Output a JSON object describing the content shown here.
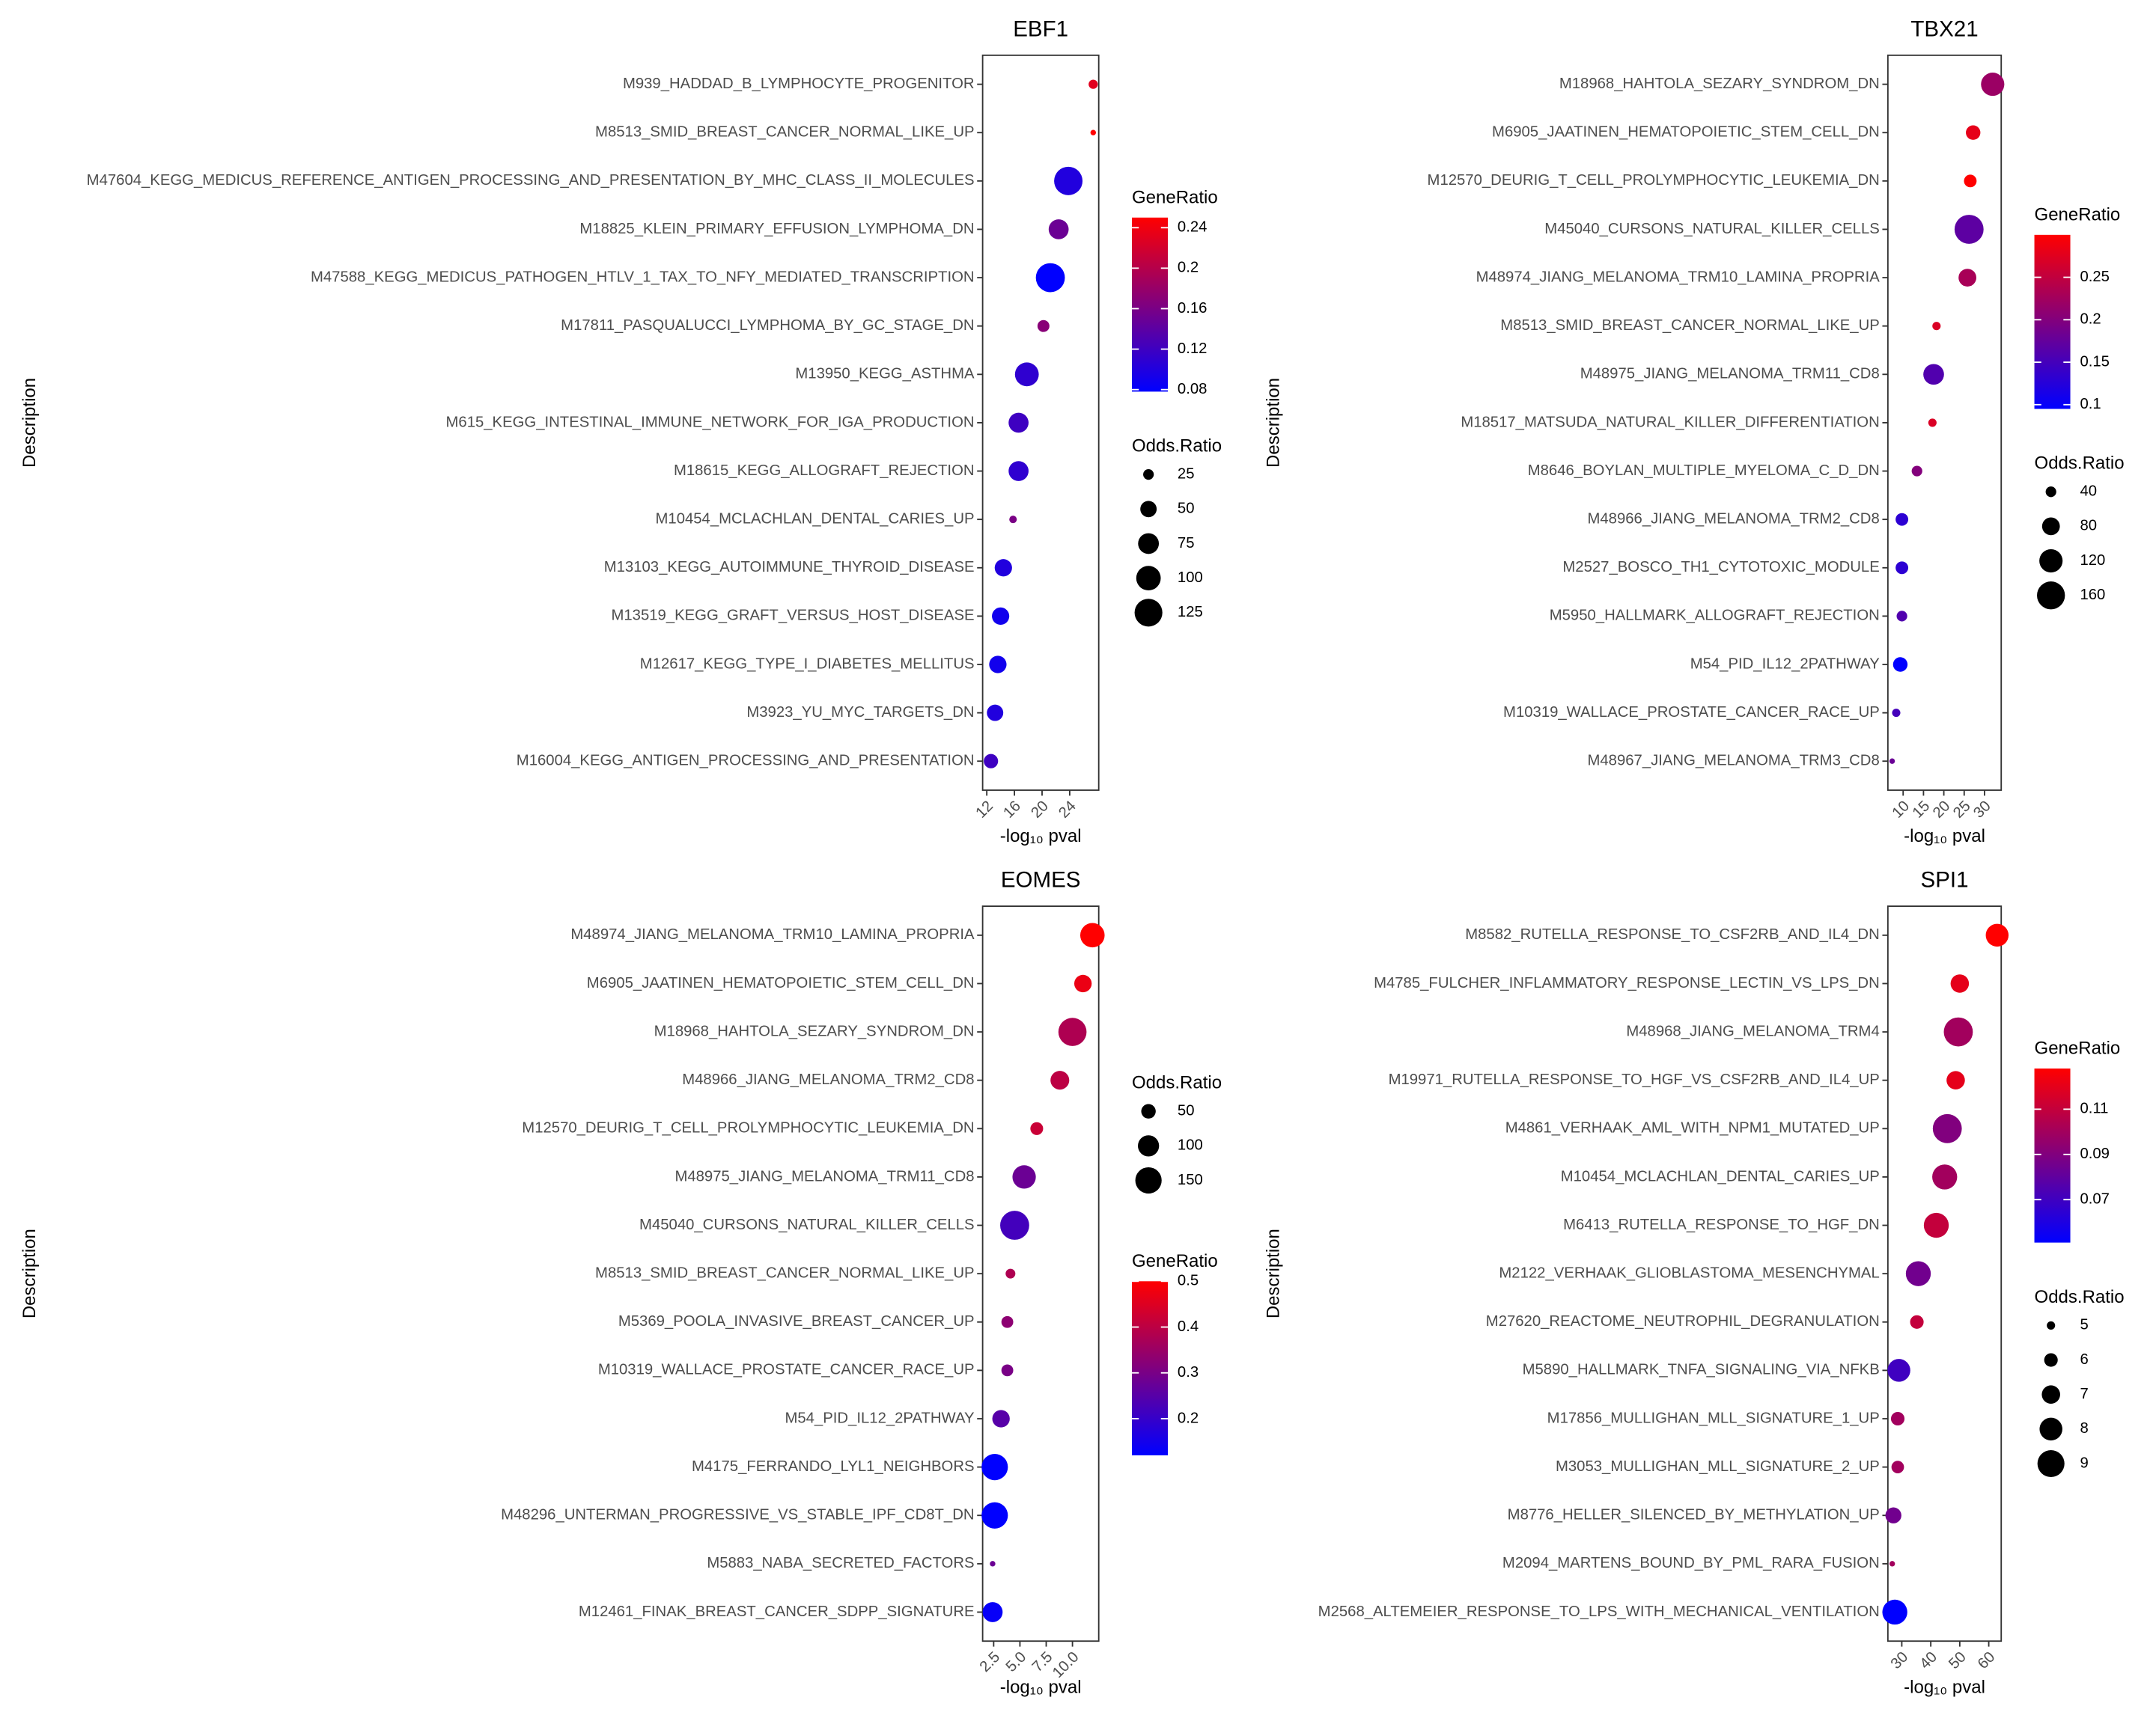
{
  "chart_data": [
    {
      "type": "dotplot",
      "title": "EBF1",
      "x_label": "-log₁₀ pval",
      "y_label": "Description",
      "categories": [
        "M939_HADDAD_B_LYMPHOCYTE_PROGENITOR",
        "M8513_SMID_BREAST_CANCER_NORMAL_LIKE_UP",
        "M47604_KEGG_MEDICUS_REFERENCE_ANTIGEN_PROCESSING_AND_PRESENTATION_BY_MHC_CLASS_II_MOLECULES",
        "M18825_KLEIN_PRIMARY_EFFUSION_LYMPHOMA_DN",
        "M47588_KEGG_MEDICUS_PATHOGEN_HTLV_1_TAX_TO_NFY_MEDIATED_TRANSCRIPTION",
        "M17811_PASQUALUCCI_LYMPHOMA_BY_GC_STAGE_DN",
        "M13950_KEGG_ASTHMA",
        "M615_KEGG_INTESTINAL_IMMUNE_NETWORK_FOR_IGA_PRODUCTION",
        "M18615_KEGG_ALLOGRAFT_REJECTION",
        "M10454_MCLACHLAN_DENTAL_CARIES_UP",
        "M13103_KEGG_AUTOIMMUNE_THYROID_DISEASE",
        "M13519_KEGG_GRAFT_VERSUS_HOST_DISEASE",
        "M12617_KEGG_TYPE_I_DIABETES_MELLITUS",
        "M3923_YU_MYC_TARGETS_DN",
        "M16004_KEGG_ANTIGEN_PROCESSING_AND_PRESENTATION"
      ],
      "values": [
        27.4,
        27.4,
        23.8,
        22.4,
        21.2,
        20.2,
        17.8,
        16.6,
        16.6,
        15.8,
        14.4,
        14.0,
        13.6,
        13.2,
        12.6
      ],
      "size_values": [
        20,
        10,
        130,
        70,
        135,
        30,
        95,
        70,
        70,
        15,
        55,
        55,
        55,
        50,
        40
      ],
      "color_values": [
        0.23,
        0.25,
        0.1,
        0.15,
        0.078,
        0.17,
        0.11,
        0.12,
        0.11,
        0.16,
        0.1,
        0.09,
        0.09,
        0.1,
        0.12
      ],
      "xlim": [
        11.4,
        28.2
      ],
      "xticks": [
        12,
        16,
        20,
        24
      ],
      "color_low": "#0000ff",
      "color_high": "#ff0000",
      "legends": [
        {
          "kind": "color",
          "title": "GeneRatio",
          "ticks": [
            0.08,
            0.12,
            0.16,
            0.2,
            0.24
          ]
        },
        {
          "kind": "size",
          "title": "Odds.Ratio",
          "ticks": [
            25,
            50,
            75,
            100,
            125
          ]
        }
      ]
    },
    {
      "type": "dotplot",
      "title": "TBX21",
      "x_label": "-log₁₀ pval",
      "y_label": "Description",
      "categories": [
        "M18968_HAHTOLA_SEZARY_SYNDROM_DN",
        "M6905_JAATINEN_HEMATOPOIETIC_STEM_CELL_DN",
        "M12570_DEURIG_T_CELL_PROLYMPHOCYTIC_LEUKEMIA_DN",
        "M45040_CURSONS_NATURAL_KILLER_CELLS",
        "M48974_JIANG_MELANOMA_TRM10_LAMINA_PROPRIA",
        "M8513_SMID_BREAST_CANCER_NORMAL_LIKE_UP",
        "M48975_JIANG_MELANOMA_TRM11_CD8",
        "M18517_MATSUDA_NATURAL_KILLER_DIFFERENTIATION",
        "M8646_BOYLAN_MULTIPLE_MYELOMA_C_D_DN",
        "M48966_JIANG_MELANOMA_TRM2_CD8",
        "M2527_BOSCO_TH1_CYTOTOXIC_MODULE",
        "M5950_HALLMARK_ALLOGRAFT_REJECTION",
        "M54_PID_IL12_2PATHWAY",
        "M10319_WALLACE_PROSTATE_CANCER_RACE_UP",
        "M48967_JIANG_MELANOMA_TRM3_CD8"
      ],
      "values": [
        32.0,
        27.2,
        26.5,
        26.2,
        25.8,
        18.2,
        17.5,
        17.2,
        13.4,
        9.7,
        9.7,
        9.7,
        9.3,
        8.3,
        7.3
      ],
      "size_values": [
        120,
        60,
        50,
        170,
        80,
        30,
        100,
        30,
        40,
        50,
        50,
        40,
        60,
        30,
        20
      ],
      "color_values": [
        0.22,
        0.28,
        0.3,
        0.17,
        0.23,
        0.27,
        0.16,
        0.27,
        0.2,
        0.13,
        0.13,
        0.16,
        0.095,
        0.15,
        0.18
      ],
      "xlim": [
        6.25,
        34.1
      ],
      "xticks": [
        10,
        15,
        20,
        25,
        30
      ],
      "color_low": "#0000ff",
      "color_high": "#ff0000",
      "legends": [
        {
          "kind": "color",
          "title": "GeneRatio",
          "ticks": [
            0.1,
            0.15,
            0.2,
            0.25
          ]
        },
        {
          "kind": "size",
          "title": "Odds.Ratio",
          "ticks": [
            40,
            80,
            120,
            160
          ]
        }
      ]
    },
    {
      "type": "dotplot",
      "title": "EOMES",
      "x_label": "-log₁₀ pval",
      "y_label": "Description",
      "categories": [
        "M48974_JIANG_MELANOMA_TRM10_LAMINA_PROPRIA",
        "M6905_JAATINEN_HEMATOPOIETIC_STEM_CELL_DN",
        "M18968_HAHTOLA_SEZARY_SYNDROM_DN",
        "M48966_JIANG_MELANOMA_TRM2_CD8",
        "M12570_DEURIG_T_CELL_PROLYMPHOCYTIC_LEUKEMIA_DN",
        "M48975_JIANG_MELANOMA_TRM11_CD8",
        "M45040_CURSONS_NATURAL_KILLER_CELLS",
        "M8513_SMID_BREAST_CANCER_NORMAL_LIKE_UP",
        "M5369_POOLA_INVASIVE_BREAST_CANCER_UP",
        "M10319_WALLACE_PROSTATE_CANCER_RACE_UP",
        "M54_PID_IL12_2PATHWAY",
        "M4175_FERRANDO_LYL1_NEIGHBORS",
        "M48296_UNTERMAN_PROGRESSIVE_VS_STABLE_IPF_CD8T_DN",
        "M5883_NABA_SECRETED_FACTORS",
        "M12461_FINAK_BREAST_CANCER_SDPP_SIGNATURE"
      ],
      "values": [
        11.9,
        11.0,
        10.0,
        8.8,
        6.6,
        5.4,
        4.5,
        4.1,
        3.8,
        3.8,
        3.2,
        2.6,
        2.6,
        2.4,
        2.4
      ],
      "size_values": [
        130,
        70,
        170,
        80,
        40,
        120,
        180,
        25,
        35,
        35,
        70,
        150,
        150,
        10,
        90
      ],
      "color_values": [
        0.5,
        0.47,
        0.38,
        0.4,
        0.42,
        0.28,
        0.22,
        0.38,
        0.33,
        0.3,
        0.25,
        0.12,
        0.12,
        0.28,
        0.13
      ],
      "xlim": [
        1.45,
        12.5
      ],
      "xticks": [
        2.5,
        {
          "value": 5,
          "label": "5.0"
        },
        7.5,
        {
          "value": 10,
          "label": "10.0"
        }
      ],
      "color_low": "#0000ff",
      "color_high": "#ff0000",
      "legends": [
        {
          "kind": "size",
          "title": "Odds.Ratio",
          "ticks": [
            50,
            100,
            150
          ]
        },
        {
          "kind": "color",
          "title": "GeneRatio",
          "ticks": [
            0.2,
            0.3,
            0.4,
            0.5
          ]
        }
      ]
    },
    {
      "type": "dotplot",
      "title": "SPI1",
      "x_label": "-log₁₀ pval",
      "y_label": "Description",
      "categories": [
        "M8582_RUTELLA_RESPONSE_TO_CSF2RB_AND_IL4_DN",
        "M4785_FULCHER_INFLAMMATORY_RESPONSE_LECTIN_VS_LPS_DN",
        "M48968_JIANG_MELANOMA_TRM4",
        "M19971_RUTELLA_RESPONSE_TO_HGF_VS_CSF2RB_AND_IL4_UP",
        "M4861_VERHAAK_AML_WITH_NPM1_MUTATED_UP",
        "M10454_MCLACHLAN_DENTAL_CARIES_UP",
        "M6413_RUTELLA_RESPONSE_TO_HGF_DN",
        "M2122_VERHAAK_GLIOBLASTOMA_MESENCHYMAL",
        "M27620_REACTOME_NEUTROPHIL_DEGRANULATION",
        "M5890_HALLMARK_TNFA_SIGNALING_VIA_NFKB",
        "M17856_MULLIGHAN_MLL_SIGNATURE_1_UP",
        "M3053_MULLIGHAN_MLL_SIGNATURE_2_UP",
        "M8776_HELLER_SILENCED_BY_METHYLATION_UP",
        "M2094_MARTENS_BOUND_BY_PML_RARA_FUSION",
        "M2568_ALTEMEIER_RESPONSE_TO_LPS_WITH_MECHANICAL_VENTILATION"
      ],
      "values": [
        62.9,
        50.0,
        49.5,
        48.6,
        45.7,
        44.8,
        41.9,
        35.7,
        35.2,
        29.0,
        28.6,
        28.6,
        27.1,
        26.7,
        27.6
      ],
      "size_values": [
        8,
        7,
        9.5,
        7,
        9.5,
        8.5,
        8.5,
        8.5,
        6,
        8,
        6,
        5.8,
        6.5,
        4.5,
        8.5
      ],
      "color_values": [
        0.128,
        0.12,
        0.1,
        0.12,
        0.09,
        0.1,
        0.11,
        0.085,
        0.11,
        0.07,
        0.1,
        0.1,
        0.085,
        0.1,
        0.051
      ],
      "xlim": [
        25.2,
        64.3
      ],
      "xticks": [
        30,
        40,
        50,
        60
      ],
      "color_low": "#0000ff",
      "color_high": "#ff0000",
      "legends": [
        {
          "kind": "color",
          "title": "GeneRatio",
          "ticks": [
            0.07,
            0.09,
            0.11
          ]
        },
        {
          "kind": "size",
          "title": "Odds.Ratio",
          "ticks": [
            5,
            6,
            7,
            8,
            9
          ]
        }
      ]
    }
  ]
}
